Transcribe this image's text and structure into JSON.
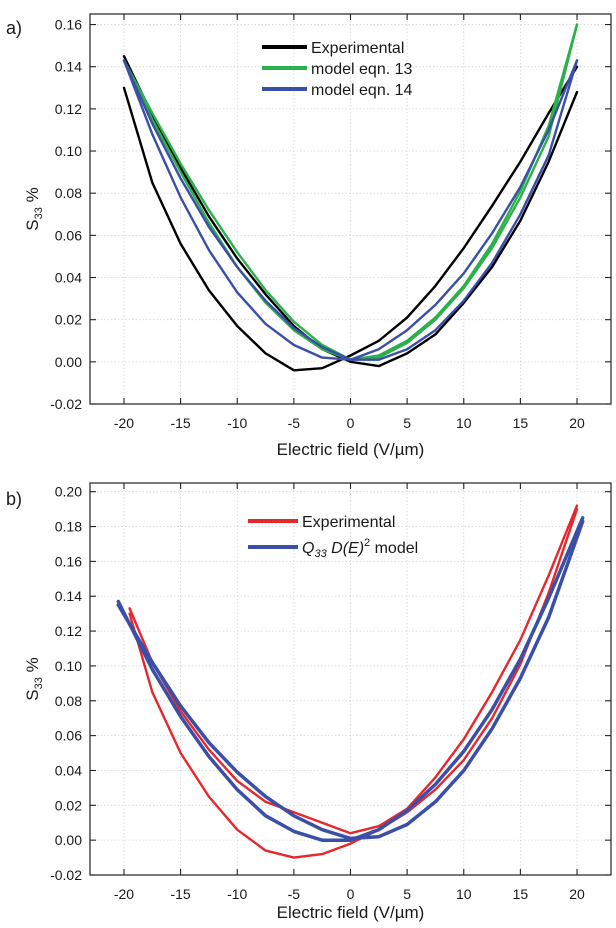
{
  "chart_data": [
    {
      "panel_label": "a)",
      "type": "line",
      "xlabel": "Electric field (V/µm)",
      "ylabel_base": "S",
      "ylabel_sub": "33",
      "ylabel_unit": "%",
      "xlim": [
        -23,
        23
      ],
      "ylim": [
        -0.02,
        0.165
      ],
      "xticks": [
        -20,
        -15,
        -10,
        -5,
        0,
        5,
        10,
        15,
        20
      ],
      "xtick_labels": [
        "-20",
        "-15",
        "-10",
        "-5",
        "0",
        "5",
        "10",
        "15",
        "20"
      ],
      "yticks": [
        -0.02,
        0,
        0.02,
        0.04,
        0.06,
        0.08,
        0.1,
        0.12,
        0.14,
        0.16
      ],
      "ytick_labels": [
        "-0.02",
        "0.00",
        "0.02",
        "0.04",
        "0.06",
        "0.08",
        "0.10",
        "0.12",
        "0.14",
        "0.16"
      ],
      "grid": true,
      "legend_position": "top-center",
      "series": [
        {
          "name": "Experimental",
          "color": "#000000",
          "branches": [
            {
              "x": [
                -20,
                -17.5,
                -15,
                -12.5,
                -10,
                -7.5,
                -5,
                -2.5,
                0,
                2.5,
                5,
                7.5,
                10,
                12.5,
                15,
                17.5,
                20
              ],
              "y": [
                0.145,
                0.117,
                0.092,
                0.069,
                0.049,
                0.032,
                0.017,
                0.006,
                0.0,
                -0.002,
                0.004,
                0.013,
                0.028,
                0.045,
                0.067,
                0.095,
                0.128
              ]
            },
            {
              "x": [
                20,
                17.5,
                15,
                12.5,
                10,
                7.5,
                5,
                2.5,
                0,
                -2.5,
                -5,
                -7.5,
                -10,
                -12.5,
                -15,
                -17.5,
                -20
              ],
              "y": [
                0.14,
                0.118,
                0.095,
                0.074,
                0.054,
                0.036,
                0.021,
                0.01,
                0.003,
                -0.003,
                -0.004,
                0.004,
                0.017,
                0.034,
                0.056,
                0.085,
                0.13
              ]
            }
          ]
        },
        {
          "name": "model eqn. 13",
          "color": "#2bb04a",
          "branches": [
            {
              "x": [
                -20,
                -17.5,
                -15,
                -12.5,
                -10,
                -7.5,
                -5,
                -2.5,
                0,
                2.5,
                5,
                7.5,
                10,
                12.5,
                15,
                17.5,
                20
              ],
              "y": [
                0.143,
                0.118,
                0.094,
                0.072,
                0.052,
                0.034,
                0.019,
                0.008,
                0.001,
                0.002,
                0.009,
                0.02,
                0.035,
                0.054,
                0.078,
                0.107,
                0.16
              ]
            },
            {
              "x": [
                20,
                17.5,
                15,
                12.5,
                10,
                7.5,
                5,
                2.5,
                0,
                -2.5,
                -5,
                -7.5,
                -10,
                -12.5,
                -15,
                -17.5,
                -20
              ],
              "y": [
                0.16,
                0.112,
                0.081,
                0.056,
                0.036,
                0.021,
                0.01,
                0.003,
                0.001,
                0.006,
                0.015,
                0.028,
                0.045,
                0.066,
                0.09,
                0.115,
                0.143
              ]
            }
          ]
        },
        {
          "name": "model eqn. 14",
          "color": "#3a4fa8",
          "branches": [
            {
              "x": [
                -20,
                -17.5,
                -15,
                -12.5,
                -10,
                -7.5,
                -5,
                -2.5,
                0,
                2.5,
                5,
                7.5,
                10,
                12.5,
                15,
                17.5,
                20
              ],
              "y": [
                0.143,
                0.113,
                0.087,
                0.064,
                0.045,
                0.029,
                0.016,
                0.007,
                0.001,
                0.001,
                0.006,
                0.015,
                0.029,
                0.047,
                0.07,
                0.098,
                0.143
              ]
            },
            {
              "x": [
                20,
                17.5,
                15,
                12.5,
                10,
                7.5,
                5,
                2.5,
                0,
                -2.5,
                -5,
                -7.5,
                -10,
                -12.5,
                -15,
                -17.5,
                -20
              ],
              "y": [
                0.143,
                0.11,
                0.083,
                0.061,
                0.042,
                0.027,
                0.015,
                0.006,
                0.001,
                0.002,
                0.008,
                0.018,
                0.033,
                0.053,
                0.078,
                0.108,
                0.143
              ]
            }
          ]
        }
      ]
    },
    {
      "panel_label": "b)",
      "type": "line",
      "xlabel": "Electric field (V/µm)",
      "ylabel_base": "S",
      "ylabel_sub": "33",
      "ylabel_unit": "%",
      "xlim": [
        -23,
        23
      ],
      "ylim": [
        -0.02,
        0.205
      ],
      "xticks": [
        -20,
        -15,
        -10,
        -5,
        0,
        5,
        10,
        15,
        20
      ],
      "xtick_labels": [
        "-20",
        "-15",
        "-10",
        "-5",
        "0",
        "5",
        "10",
        "15",
        "20"
      ],
      "yticks": [
        -0.02,
        0,
        0.02,
        0.04,
        0.06,
        0.08,
        0.1,
        0.12,
        0.14,
        0.16,
        0.18,
        0.2
      ],
      "ytick_labels": [
        "-0.02",
        "0.00",
        "0.02",
        "0.04",
        "0.06",
        "0.08",
        "0.10",
        "0.12",
        "0.14",
        "0.16",
        "0.18",
        "0.20"
      ],
      "grid": true,
      "legend_position": "top-center",
      "series": [
        {
          "name": "Experimental",
          "color": "#e8262b",
          "branches": [
            {
              "x": [
                -19.5,
                -17.5,
                -15,
                -12.5,
                -10,
                -7.5,
                -5,
                -2.5,
                0,
                2.5,
                5,
                7.5,
                10,
                12.5,
                15,
                17.5,
                20
              ],
              "y": [
                0.133,
                0.102,
                0.074,
                0.052,
                0.034,
                0.022,
                0.016,
                0.01,
                0.004,
                0.008,
                0.018,
                0.036,
                0.058,
                0.085,
                0.115,
                0.152,
                0.192
              ]
            },
            {
              "x": [
                20,
                17.5,
                15,
                12.5,
                10,
                7.5,
                5,
                2.5,
                0,
                -2.5,
                -5,
                -7.5,
                -10,
                -12.5,
                -15,
                -17.5,
                -19.5
              ],
              "y": [
                0.19,
                0.142,
                0.101,
                0.07,
                0.046,
                0.029,
                0.016,
                0.006,
                -0.002,
                -0.008,
                -0.01,
                -0.006,
                0.006,
                0.025,
                0.05,
                0.085,
                0.13
              ]
            }
          ]
        },
        {
          "name": "Q33 D(E)2 model",
          "legend_name_main": "Q",
          "legend_name_sub": "33",
          "legend_name_mid": " D(E)",
          "legend_name_sup": "2",
          "legend_name_end": " model",
          "color": "#3a4fa8",
          "branches": [
            {
              "x": [
                -20.5,
                -17.5,
                -15,
                -12.5,
                -10,
                -7.5,
                -5,
                -2.5,
                0,
                2.5,
                5,
                7.5,
                10,
                12.5,
                15,
                17.5,
                20.5
              ],
              "y": [
                0.135,
                0.102,
                0.077,
                0.056,
                0.039,
                0.025,
                0.014,
                0.006,
                0.001,
                0.002,
                0.009,
                0.022,
                0.04,
                0.064,
                0.093,
                0.128,
                0.183
              ]
            },
            {
              "x": [
                20.5,
                17.5,
                15,
                12.5,
                10,
                7.5,
                5,
                2.5,
                0,
                -2.5,
                -5,
                -7.5,
                -10,
                -12.5,
                -15,
                -17.5,
                -20.5
              ],
              "y": [
                0.185,
                0.139,
                0.104,
                0.075,
                0.051,
                0.032,
                0.017,
                0.006,
                0.0,
                0.0,
                0.005,
                0.014,
                0.029,
                0.048,
                0.071,
                0.098,
                0.137
              ]
            }
          ]
        }
      ]
    }
  ]
}
